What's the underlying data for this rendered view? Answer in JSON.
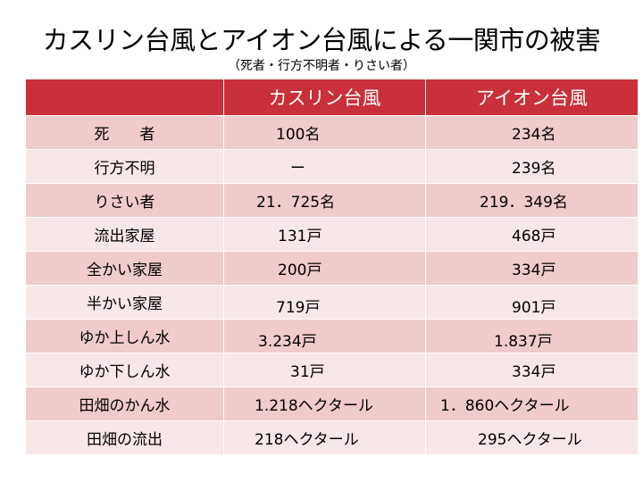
{
  "title": "カスリン台風とアイオン台風による一関市の被害",
  "subtitle": "（死者・行方不明者・りさい者）",
  "table": {
    "headers": [
      "",
      "カスリン台風",
      "アイオン台風"
    ],
    "rows": [
      {
        "label": "死　　者",
        "kathleen": "100名",
        "ion": "234名"
      },
      {
        "label": "行方不明",
        "kathleen": "ー",
        "ion": "239名"
      },
      {
        "label": "りさい者",
        "kathleen": "21．725名",
        "ion": "219．349名"
      },
      {
        "label": "流出家屋",
        "kathleen": "131戸",
        "ion": "468戸"
      },
      {
        "label": "全かい家屋",
        "kathleen": "200戸",
        "ion": "334戸"
      },
      {
        "label": "半かい家屋",
        "kathleen": "719戸",
        "ion": "901戸"
      },
      {
        "label": "ゆか上しん水",
        "kathleen": "3.234戸",
        "ion": "1.837戸"
      },
      {
        "label": "ゆか下しん水",
        "kathleen": "31戸",
        "ion": "334戸"
      },
      {
        "label": "田畑のかん水",
        "kathleen": "1.218ヘクタール",
        "ion": "1．860ヘクタール"
      },
      {
        "label": "田畑の流出",
        "kathleen": "218ヘクタール",
        "ion": "295ヘクタール"
      }
    ]
  },
  "colors": {
    "header_bg": "#c9303a",
    "row_dark": "#efcbcb",
    "row_light": "#f8e7e7"
  }
}
